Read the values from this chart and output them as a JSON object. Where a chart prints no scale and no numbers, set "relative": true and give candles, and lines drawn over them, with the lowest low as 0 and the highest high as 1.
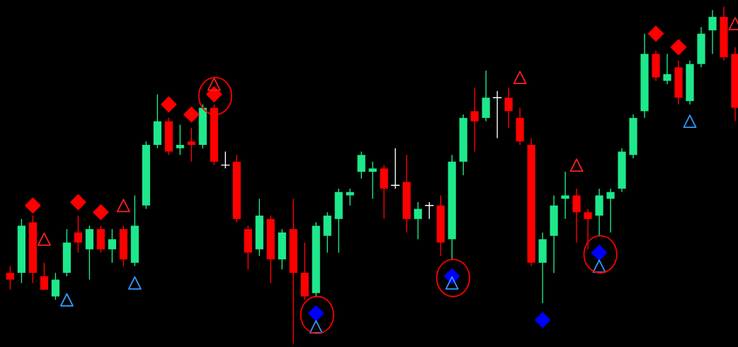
{
  "chart_data": {
    "type": "candlestick",
    "relative": true,
    "categories": [
      null,
      null,
      null,
      null,
      null,
      null,
      null,
      null,
      null,
      null,
      null,
      null,
      null,
      null,
      null,
      null,
      null,
      null,
      null,
      null,
      null,
      null,
      null,
      null,
      null,
      null,
      null,
      null,
      null,
      null,
      null,
      null,
      null,
      null,
      null,
      null,
      null,
      null,
      null,
      null,
      null,
      null,
      null,
      null,
      null,
      null,
      null,
      null,
      null,
      null,
      null,
      null,
      null,
      null,
      null,
      null,
      null,
      null,
      null,
      null,
      null,
      null,
      null,
      null,
      null
    ],
    "ohlc": [
      [
        0.21,
        0.23,
        0.16,
        0.19
      ],
      [
        0.21,
        0.37,
        0.18,
        0.35
      ],
      [
        0.36,
        0.38,
        0.18,
        0.21
      ],
      [
        0.2,
        0.24,
        0.16,
        0.16
      ],
      [
        0.14,
        0.21,
        0.13,
        0.19
      ],
      [
        0.21,
        0.34,
        0.2,
        0.3
      ],
      [
        0.33,
        0.38,
        0.27,
        0.3
      ],
      [
        0.28,
        0.35,
        0.19,
        0.34
      ],
      [
        0.34,
        0.35,
        0.27,
        0.28
      ],
      [
        0.28,
        0.34,
        0.24,
        0.31
      ],
      [
        0.34,
        0.35,
        0.23,
        0.25
      ],
      [
        0.24,
        0.44,
        0.23,
        0.35
      ],
      [
        0.41,
        0.6,
        0.4,
        0.59
      ],
      [
        0.59,
        0.74,
        0.58,
        0.66
      ],
      [
        0.66,
        0.67,
        0.56,
        0.57
      ],
      [
        0.58,
        0.65,
        0.56,
        0.59
      ],
      [
        0.6,
        0.64,
        0.54,
        0.59
      ],
      [
        0.59,
        0.71,
        0.58,
        0.7
      ],
      [
        0.7,
        0.71,
        0.53,
        0.54
      ],
      [
        0.53,
        0.57,
        0.52,
        0.53
      ],
      [
        0.54,
        0.56,
        0.36,
        0.37
      ],
      [
        0.34,
        0.35,
        0.22,
        0.27
      ],
      [
        0.28,
        0.43,
        0.26,
        0.38
      ],
      [
        0.37,
        0.38,
        0.18,
        0.25
      ],
      [
        0.25,
        0.34,
        0.22,
        0.33
      ],
      [
        0.34,
        0.43,
        0.0,
        0.21
      ],
      [
        0.21,
        0.3,
        0.13,
        0.14
      ],
      [
        0.15,
        0.36,
        0.14,
        0.35
      ],
      [
        0.32,
        0.39,
        0.27,
        0.38
      ],
      [
        0.37,
        0.46,
        0.27,
        0.45
      ],
      [
        0.44,
        0.46,
        0.41,
        0.45
      ],
      [
        0.51,
        0.57,
        0.49,
        0.56
      ],
      [
        0.51,
        0.54,
        0.43,
        0.52
      ],
      [
        0.52,
        0.53,
        0.37,
        0.46
      ],
      [
        0.47,
        0.58,
        0.46,
        0.47
      ],
      [
        0.48,
        0.56,
        0.33,
        0.37
      ],
      [
        0.37,
        0.42,
        0.31,
        0.4
      ],
      [
        0.41,
        0.42,
        0.37,
        0.41
      ],
      [
        0.41,
        0.44,
        0.26,
        0.3
      ],
      [
        0.31,
        0.56,
        0.25,
        0.54
      ],
      [
        0.54,
        0.68,
        0.5,
        0.67
      ],
      [
        0.69,
        0.76,
        0.57,
        0.66
      ],
      [
        0.67,
        0.81,
        0.66,
        0.73
      ],
      [
        0.73,
        0.75,
        0.61,
        0.73
      ],
      [
        0.73,
        0.76,
        0.64,
        0.69
      ],
      [
        0.67,
        0.7,
        0.59,
        0.6
      ],
      [
        0.59,
        0.61,
        0.23,
        0.24
      ],
      [
        0.24,
        0.33,
        0.12,
        0.31
      ],
      [
        0.32,
        0.44,
        0.21,
        0.41
      ],
      [
        0.43,
        0.51,
        0.37,
        0.44
      ],
      [
        0.44,
        0.46,
        0.3,
        0.39
      ],
      [
        0.39,
        0.4,
        0.28,
        0.37
      ],
      [
        0.38,
        0.46,
        0.32,
        0.44
      ],
      [
        0.43,
        0.46,
        0.33,
        0.45
      ],
      [
        0.46,
        0.58,
        0.45,
        0.57
      ],
      [
        0.56,
        0.68,
        0.55,
        0.67
      ],
      [
        0.69,
        0.92,
        0.67,
        0.86
      ],
      [
        0.86,
        0.87,
        0.78,
        0.79
      ],
      [
        0.78,
        0.86,
        0.77,
        0.8
      ],
      [
        0.82,
        0.84,
        0.71,
        0.73
      ],
      [
        0.72,
        0.84,
        0.71,
        0.83
      ],
      [
        0.83,
        0.94,
        0.82,
        0.92
      ],
      [
        0.93,
        0.99,
        0.86,
        0.97
      ],
      [
        0.97,
        1.0,
        0.84,
        0.85
      ],
      [
        0.86,
        0.88,
        0.66,
        0.7
      ]
    ],
    "colors": [
      "#ff0000",
      "#1ee88c",
      "#ff0000",
      "#ff0000",
      "#1ee88c",
      "#1ee88c",
      "#ff0000",
      "#1ee88c",
      "#ff0000",
      "#1ee88c",
      "#ff0000",
      "#1ee88c",
      "#1ee88c",
      "#1ee88c",
      "#ff0000",
      "#1ee88c",
      "#ff0000",
      "#1ee88c",
      "#ff0000",
      "#ffffff",
      "#ff0000",
      "#ff0000",
      "#1ee88c",
      "#ff0000",
      "#1ee88c",
      "#ff0000",
      "#ff0000",
      "#1ee88c",
      "#1ee88c",
      "#1ee88c",
      "#1ee88c",
      "#1ee88c",
      "#1ee88c",
      "#ff0000",
      "#ffffff",
      "#ff0000",
      "#1ee88c",
      "#ffffff",
      "#ff0000",
      "#1ee88c",
      "#1ee88c",
      "#ff0000",
      "#1ee88c",
      "#ffffff",
      "#ff0000",
      "#ff0000",
      "#ff0000",
      "#1ee88c",
      "#1ee88c",
      "#1ee88c",
      "#ff0000",
      "#ff0000",
      "#1ee88c",
      "#1ee88c",
      "#1ee88c",
      "#1ee88c",
      "#1ee88c",
      "#ff0000",
      "#1ee88c",
      "#ff0000",
      "#1ee88c",
      "#1ee88c",
      "#1ee88c",
      "#ff0000",
      "#ff0000"
    ],
    "series": [
      {
        "type": "scatter",
        "marker": "diamond",
        "color": "#ff0000",
        "values": [
          null,
          null,
          0.41,
          null,
          null,
          null,
          0.42,
          null,
          0.39,
          null,
          null,
          null,
          null,
          null,
          0.71,
          null,
          0.68,
          null,
          0.74,
          null,
          null,
          null,
          null,
          null,
          null,
          null,
          null,
          null,
          null,
          null,
          null,
          null,
          null,
          null,
          null,
          null,
          null,
          null,
          null,
          null,
          null,
          null,
          null,
          null,
          null,
          null,
          null,
          null,
          null,
          null,
          null,
          null,
          null,
          null,
          null,
          null,
          null,
          0.92,
          null,
          0.88,
          null,
          null,
          null,
          null,
          null
        ]
      },
      {
        "type": "scatter",
        "marker": "diamond",
        "color": "#0000ff",
        "values": [
          null,
          null,
          null,
          null,
          null,
          null,
          null,
          null,
          null,
          null,
          null,
          null,
          null,
          null,
          null,
          null,
          null,
          null,
          null,
          null,
          null,
          null,
          null,
          null,
          null,
          null,
          null,
          0.09,
          null,
          null,
          null,
          null,
          null,
          null,
          null,
          null,
          null,
          null,
          null,
          0.2,
          null,
          null,
          null,
          null,
          null,
          null,
          null,
          0.07,
          null,
          null,
          null,
          null,
          0.27,
          null,
          null,
          null,
          null,
          null,
          null,
          null,
          null,
          null,
          null,
          null,
          null
        ]
      },
      {
        "type": "scatter",
        "marker": "triangle",
        "color": "#ff2020",
        "values": [
          null,
          null,
          null,
          0.31,
          null,
          null,
          null,
          null,
          null,
          null,
          0.41,
          null,
          null,
          null,
          null,
          null,
          null,
          null,
          0.77,
          null,
          null,
          null,
          null,
          null,
          null,
          null,
          null,
          null,
          null,
          null,
          null,
          null,
          null,
          null,
          null,
          null,
          null,
          null,
          null,
          null,
          null,
          null,
          null,
          null,
          null,
          0.79,
          null,
          null,
          null,
          null,
          0.53,
          null,
          null,
          null,
          null,
          null,
          null,
          null,
          null,
          null,
          null,
          null,
          null,
          null,
          0.95
        ]
      },
      {
        "type": "scatter",
        "marker": "triangle",
        "color": "#3399ff",
        "values": [
          null,
          null,
          null,
          null,
          null,
          0.13,
          null,
          null,
          null,
          null,
          null,
          0.18,
          null,
          null,
          null,
          null,
          null,
          null,
          null,
          null,
          null,
          null,
          null,
          null,
          null,
          null,
          null,
          0.05,
          null,
          null,
          null,
          null,
          null,
          null,
          null,
          null,
          null,
          null,
          null,
          0.18,
          null,
          null,
          null,
          null,
          null,
          null,
          null,
          null,
          null,
          null,
          null,
          null,
          0.23,
          null,
          null,
          null,
          null,
          null,
          null,
          null,
          0.66,
          null,
          null,
          null,
          null
        ]
      }
    ]
  }
}
